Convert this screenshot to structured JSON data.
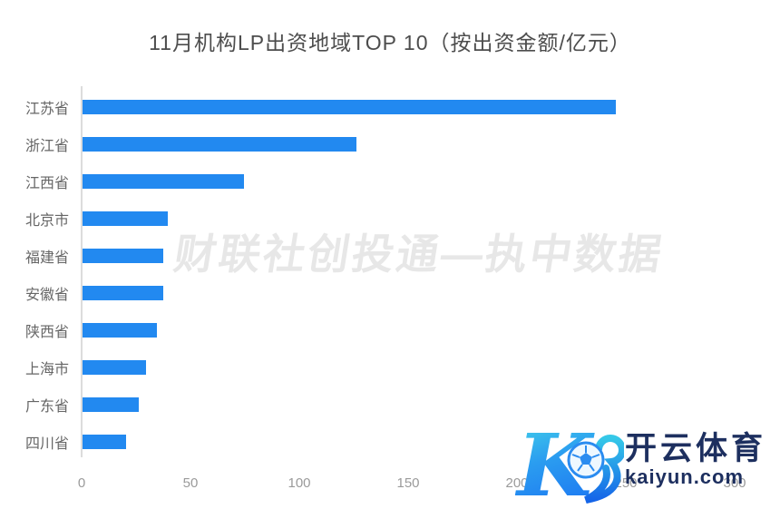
{
  "title": "11月机构LP出资地域TOP 10（按出资金额/亿元）",
  "chart_data": {
    "type": "bar",
    "orientation": "horizontal",
    "title": "11月机构LP出资地域TOP 10（按出资金额/亿元）",
    "categories": [
      "江苏省",
      "浙江省",
      "江西省",
      "北京市",
      "福建省",
      "安徽省",
      "陕西省",
      "上海市",
      "广东省",
      "四川省"
    ],
    "values": [
      245,
      126,
      74,
      39,
      37,
      37,
      34,
      29,
      26,
      20
    ],
    "unit": "亿元",
    "xlabel": "",
    "ylabel": "",
    "xlim": [
      0,
      300
    ],
    "x_ticks": [
      0,
      50,
      100,
      150,
      200,
      250,
      300
    ],
    "grid": false,
    "legend": "none",
    "bar_color": "#2289f0"
  },
  "watermark": {
    "text": "财联社创投通—执中数据"
  },
  "logo": {
    "monogram": "K",
    "brand_cn": "开云体育",
    "brand_domain": "kaiyun.com",
    "color_navy": "#1d2f5f",
    "color_blue": "#1e7bf2",
    "color_cyan": "#45d6e8"
  },
  "colors": {
    "title_text": "#4d4d4d",
    "category_text": "#666666",
    "tick_text": "#9a9a9a",
    "axis_line": "#dcdcdc",
    "watermark_text": "#e7e7e7",
    "background": "#ffffff"
  }
}
